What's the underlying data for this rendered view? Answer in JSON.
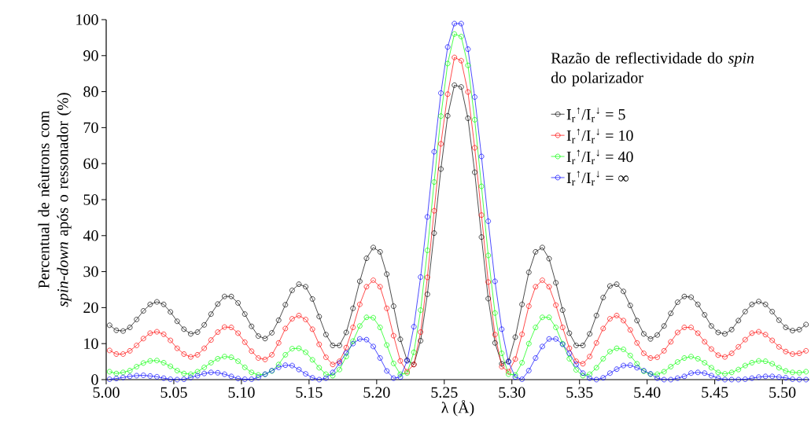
{
  "chart_data": {
    "type": "line",
    "xlabel": "λ (Å)",
    "ylabel": "Percentual de nêutrons com *spin-down* após o ressonador (%)",
    "legend_title": "Razão de reflectividade do *spin* do polarizador",
    "x": [
      5.0025,
      5.0075,
      5.0125,
      5.0175,
      5.0225,
      5.0275,
      5.0325,
      5.0375,
      5.0425,
      5.0475,
      5.0525,
      5.0575,
      5.0625,
      5.0675,
      5.0725,
      5.0775,
      5.0825,
      5.0875,
      5.0925,
      5.0975,
      5.1025,
      5.1075,
      5.1125,
      5.1175,
      5.1225,
      5.1275,
      5.1325,
      5.1375,
      5.1425,
      5.1475,
      5.1525,
      5.1575,
      5.1625,
      5.1675,
      5.1725,
      5.1775,
      5.1825,
      5.1875,
      5.1925,
      5.1975,
      5.2025,
      5.2075,
      5.2125,
      5.2175,
      5.2225,
      5.2275,
      5.2325,
      5.2375,
      5.2425,
      5.2475,
      5.2525,
      5.2575,
      5.2625,
      5.2675,
      5.2725,
      5.2775,
      5.2825,
      5.2875,
      5.2925,
      5.2975,
      5.3025,
      5.3075,
      5.3125,
      5.3175,
      5.3225,
      5.3275,
      5.3325,
      5.3375,
      5.3425,
      5.3475,
      5.3525,
      5.3575,
      5.3625,
      5.3675,
      5.3725,
      5.3775,
      5.3825,
      5.3875,
      5.3925,
      5.3975,
      5.4025,
      5.4075,
      5.4125,
      5.4175,
      5.4225,
      5.4275,
      5.4325,
      5.4375,
      5.4425,
      5.4475,
      5.4525,
      5.4575,
      5.4625,
      5.4675,
      5.4725,
      5.4775,
      5.4825,
      5.4875,
      5.4925,
      5.4975,
      5.5025,
      5.5075,
      5.5125,
      5.5175
    ],
    "series": [
      {
        "name": "I$_{r}$$^{↑}$/I$_{r}$$^{↓}$ = 5",
        "color": "#000000",
        "values": [
          15.1,
          13.7,
          13.5,
          14.5,
          16.7,
          19.1,
          20.9,
          21.6,
          20.9,
          18.8,
          16.2,
          14.0,
          12.7,
          13.2,
          15.2,
          18.2,
          21.0,
          23.1,
          23.1,
          21.3,
          18.2,
          14.8,
          12.1,
          11.4,
          13.0,
          16.5,
          20.8,
          24.8,
          26.5,
          25.8,
          22.4,
          17.5,
          12.5,
          9.5,
          9.5,
          13.1,
          19.8,
          27.3,
          33.7,
          36.7,
          35.5,
          29.3,
          20.4,
          11.2,
          5.4,
          4.2,
          10.8,
          23.7,
          40.7,
          58.5,
          73.3,
          81.8,
          81.3,
          72.6,
          57.6,
          39.6,
          22.5,
          10.2,
          4.4,
          5.1,
          11.8,
          20.9,
          29.8,
          35.5,
          36.7,
          33.6,
          26.9,
          19.3,
          12.9,
          9.5,
          9.5,
          12.7,
          17.8,
          22.8,
          26.0,
          26.5,
          24.5,
          20.6,
          16.4,
          12.7,
          11.3,
          12.4,
          14.9,
          18.4,
          21.5,
          23.1,
          22.9,
          20.9,
          18.0,
          14.9,
          13.1,
          12.7,
          13.9,
          16.4,
          18.9,
          20.9,
          21.7,
          20.9,
          18.9,
          16.5,
          14.5,
          13.6,
          13.9,
          15.3
        ]
      },
      {
        "name": "I$_{r}$$^{↑}$/I$_{r}$$^{↓}$ = 10",
        "color": "#ff0000",
        "values": [
          8.1,
          7.1,
          7.1,
          8.0,
          9.5,
          11.4,
          12.9,
          13.3,
          12.6,
          10.9,
          8.7,
          7.1,
          6.3,
          6.9,
          8.7,
          11.0,
          13.2,
          14.6,
          14.5,
          12.9,
          10.4,
          7.9,
          6.0,
          5.6,
          6.9,
          10.2,
          14.2,
          16.9,
          17.8,
          16.7,
          14.0,
          9.8,
          6.2,
          4.2,
          5.1,
          8.9,
          14.5,
          20.9,
          25.8,
          27.6,
          25.8,
          19.8,
          12.2,
          5.2,
          2.2,
          4.2,
          13.2,
          28.4,
          46.9,
          65.5,
          79.3,
          89.5,
          88.6,
          79.9,
          64.4,
          45.7,
          27.1,
          12.5,
          3.6,
          2.2,
          5.7,
          12.6,
          20.4,
          25.8,
          27.6,
          25.8,
          20.7,
          14.5,
          8.7,
          5.1,
          4.4,
          6.4,
          10.2,
          14.2,
          16.9,
          17.8,
          16.4,
          13.8,
          10.2,
          7.3,
          6.0,
          6.2,
          8.0,
          10.5,
          13.1,
          14.5,
          14.5,
          12.9,
          10.5,
          8.5,
          6.8,
          6.3,
          7.3,
          9.1,
          11.1,
          12.9,
          13.3,
          12.5,
          10.9,
          9.1,
          7.8,
          7.1,
          7.3,
          8.0
        ]
      },
      {
        "name": "I$_{r}$$^{↑}$/I$_{r}$$^{↓}$ = 40",
        "color": "#00ff00",
        "values": [
          2.2,
          1.7,
          2.0,
          2.5,
          3.6,
          4.6,
          5.2,
          5.3,
          4.7,
          3.7,
          2.5,
          1.7,
          1.5,
          2.2,
          3.4,
          4.7,
          5.8,
          6.4,
          6.2,
          5.1,
          3.4,
          2.0,
          1.3,
          1.5,
          2.4,
          4.2,
          6.9,
          8.6,
          8.7,
          7.6,
          5.5,
          3.3,
          1.5,
          1.1,
          2.8,
          6.4,
          10.7,
          14.9,
          17.3,
          17.2,
          14.5,
          9.6,
          4.5,
          1.5,
          1.8,
          7.6,
          19.3,
          35.9,
          54.9,
          73.2,
          87.8,
          96.0,
          95.3,
          87.3,
          72.2,
          53.7,
          34.5,
          18.5,
          7.3,
          1.5,
          1.3,
          4.7,
          10.0,
          14.5,
          17.3,
          17.3,
          14.5,
          10.0,
          5.8,
          2.7,
          1.1,
          1.5,
          3.3,
          5.8,
          7.8,
          8.7,
          8.4,
          6.7,
          4.4,
          2.3,
          1.5,
          1.5,
          2.2,
          3.6,
          4.9,
          6.0,
          6.4,
          5.8,
          4.7,
          3.3,
          2.0,
          1.6,
          2.0,
          2.8,
          3.9,
          4.7,
          5.2,
          5.1,
          4.4,
          3.3,
          2.4,
          2.0,
          1.9,
          2.2
        ]
      },
      {
        "name": "I$_{r}$$^{↑}$/I$_{r}$$^{↓}$ = ∞",
        "color": "#0000ff",
        "values": [
          0.1,
          0.3,
          0.6,
          0.9,
          1.1,
          1.2,
          1.0,
          0.8,
          0.4,
          0.1,
          0.0,
          0.1,
          0.6,
          1.1,
          1.7,
          2.0,
          1.9,
          1.5,
          0.9,
          0.3,
          0.1,
          0.1,
          0.6,
          1.5,
          2.5,
          3.4,
          4.0,
          3.9,
          2.8,
          1.6,
          0.5,
          0.0,
          0.4,
          2.0,
          4.6,
          7.4,
          10.0,
          11.3,
          11.1,
          9.2,
          6.0,
          2.4,
          0.4,
          0.7,
          5.2,
          14.7,
          28.5,
          45.2,
          63.3,
          79.6,
          92.4,
          98.9,
          98.9,
          91.8,
          78.5,
          62.0,
          44.0,
          27.3,
          14.0,
          4.9,
          0.7,
          0.1,
          2.5,
          6.0,
          9.2,
          11.3,
          11.3,
          9.8,
          7.3,
          4.2,
          1.8,
          0.4,
          0.0,
          0.5,
          1.8,
          2.9,
          3.9,
          4.0,
          3.3,
          2.5,
          1.6,
          0.4,
          0.0,
          0.0,
          0.4,
          0.9,
          1.8,
          2.0,
          1.8,
          1.1,
          0.4,
          0.0,
          0.0,
          0.0,
          0.1,
          0.4,
          0.7,
          0.9,
          0.9,
          0.7,
          0.5,
          0.1,
          0.0,
          0.0
        ]
      }
    ],
    "xlim": [
      5.0,
      5.52
    ],
    "xticks": [
      {
        "value": 5.0,
        "label": "5.00"
      },
      {
        "value": 5.05,
        "label": "5.05"
      },
      {
        "value": 5.1,
        "label": "5.10"
      },
      {
        "value": 5.15,
        "label": "5.15"
      },
      {
        "value": 5.2,
        "label": "5.20"
      },
      {
        "value": 5.25,
        "label": "5.25"
      },
      {
        "value": 5.3,
        "label": "5.30"
      },
      {
        "value": 5.35,
        "label": "5.35"
      },
      {
        "value": 5.4,
        "label": "5.40"
      },
      {
        "value": 5.45,
        "label": "5.45"
      },
      {
        "value": 5.5,
        "label": "5.50"
      }
    ],
    "ylim": [
      0,
      100
    ],
    "yticks": [
      0,
      10,
      20,
      30,
      40,
      50,
      60,
      70,
      80,
      90,
      100
    ],
    "legend": "top right",
    "marker": "circle",
    "line_style": "solid",
    "grid": false
  }
}
